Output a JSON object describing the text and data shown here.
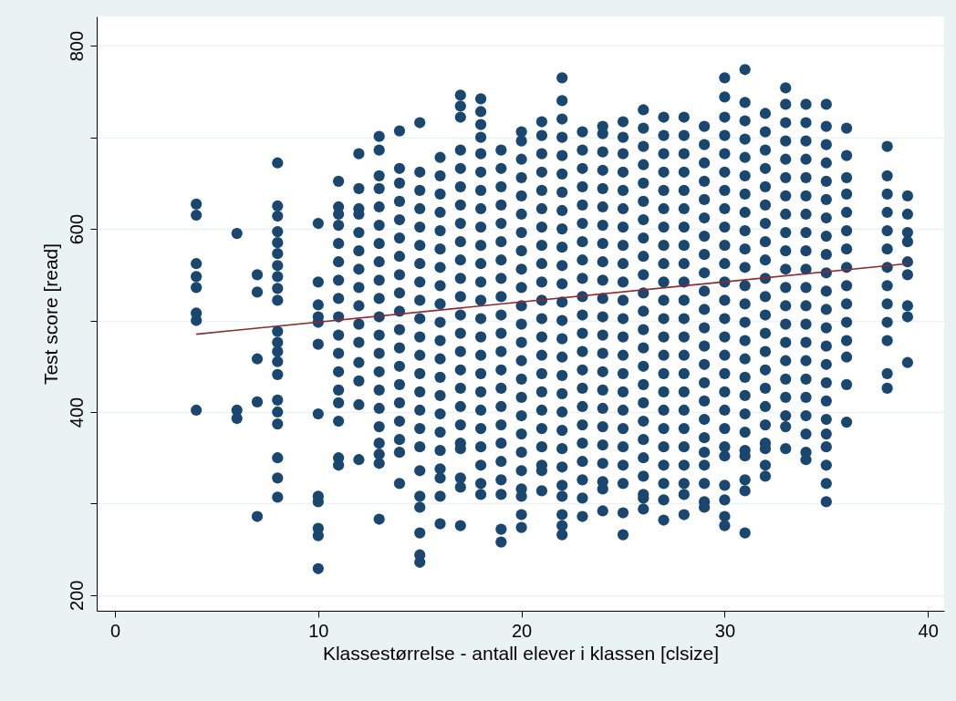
{
  "chart_data": {
    "type": "scatter",
    "xlabel": "Klassestørrelse - antall elever i klassen [clsize]",
    "ylabel": "Test score [read]",
    "xlim": [
      -0.9,
      40.8
    ],
    "ylim": [
      183,
      832
    ],
    "xticks": [
      0,
      10,
      20,
      30,
      40
    ],
    "yticks": [
      200,
      {
        "value": 300,
        "label": null
      },
      400,
      {
        "value": 500,
        "label": null
      },
      600,
      {
        "value": 700,
        "label": null
      },
      800
    ],
    "grid": "y",
    "marker": "circle",
    "series": [
      {
        "color": "#1a476f",
        "x": [
          4,
          4,
          4,
          4,
          4,
          4,
          4,
          4
        ],
        "values": [
          627,
          615,
          562,
          548,
          536,
          508,
          500,
          402
        ]
      },
      {
        "color": "#1a476f",
        "x": [
          6,
          6,
          6
        ],
        "values": [
          595,
          402,
          393
        ]
      },
      {
        "color": "#1a476f",
        "x": [
          7,
          7,
          7,
          7,
          7
        ],
        "values": [
          550,
          531,
          458,
          411,
          286
        ]
      },
      {
        "color": "#1a476f",
        "x": [
          8,
          8,
          8,
          8,
          8,
          8,
          8,
          8,
          8,
          8,
          8,
          8,
          8,
          8,
          8,
          8,
          8,
          8,
          8,
          8,
          8
        ],
        "values": [
          672,
          625,
          614,
          597,
          585,
          573,
          560,
          548,
          535,
          522,
          488,
          476,
          466,
          455,
          441,
          413,
          400,
          387,
          350,
          328,
          307
        ]
      },
      {
        "color": "#1a476f",
        "x": [
          10,
          10,
          10,
          10,
          10,
          10,
          10,
          10,
          10,
          10,
          10,
          10
        ],
        "values": [
          606,
          542,
          517,
          504,
          498,
          474,
          398,
          308,
          302,
          273,
          265,
          229
        ]
      },
      {
        "color": "#1a476f",
        "x": [
          11,
          11,
          11,
          11,
          11,
          11,
          11,
          11,
          11,
          11,
          11,
          11,
          11,
          11,
          11,
          11,
          11
        ],
        "values": [
          652,
          624,
          616,
          604,
          584,
          564,
          544,
          524,
          504,
          484,
          464,
          444,
          424,
          410,
          390,
          350,
          342
        ]
      },
      {
        "color": "#1a476f",
        "x": [
          12,
          12,
          12,
          12,
          12,
          12,
          12,
          12,
          12,
          12,
          12,
          12,
          12,
          12,
          12
        ],
        "values": [
          682,
          644,
          622,
          616,
          596,
          576,
          556,
          536,
          516,
          496,
          476,
          454,
          434,
          408,
          348
        ]
      },
      {
        "color": "#1a476f",
        "x": [
          13,
          13,
          13,
          13,
          13,
          13,
          13,
          13,
          13,
          13,
          13,
          13,
          13,
          13,
          13,
          13,
          13,
          13,
          13,
          13,
          13
        ],
        "values": [
          701,
          686,
          658,
          644,
          624,
          604,
          584,
          564,
          544,
          524,
          504,
          484,
          464,
          444,
          424,
          404,
          384,
          366,
          354,
          344,
          283
        ]
      },
      {
        "color": "#1a476f",
        "x": [
          14,
          14,
          14,
          14,
          14,
          14,
          14,
          14,
          14,
          14,
          14,
          14,
          14,
          14,
          14,
          14,
          14,
          14,
          14
        ],
        "values": [
          707,
          666,
          650,
          630,
          610,
          590,
          570,
          550,
          530,
          510,
          490,
          470,
          450,
          430,
          410,
          390,
          370,
          356,
          322
        ]
      },
      {
        "color": "#1a476f",
        "x": [
          15,
          15,
          15,
          15,
          15,
          15,
          15,
          15,
          15,
          15,
          15,
          15,
          15,
          15,
          15,
          15,
          15,
          15,
          15,
          15,
          15,
          15,
          15
        ],
        "values": [
          716,
          662,
          642,
          622,
          602,
          582,
          562,
          542,
          522,
          502,
          482,
          462,
          442,
          422,
          402,
          382,
          362,
          336,
          308,
          296,
          268,
          244,
          236
        ]
      },
      {
        "color": "#1a476f",
        "x": [
          16,
          16,
          16,
          16,
          16,
          16,
          16,
          16,
          16,
          16,
          16,
          16,
          16,
          16,
          16,
          16,
          16,
          16,
          16,
          16,
          16
        ],
        "values": [
          678,
          658,
          638,
          618,
          598,
          578,
          558,
          538,
          518,
          498,
          478,
          458,
          438,
          418,
          398,
          378,
          358,
          338,
          328,
          308,
          278
        ]
      },
      {
        "color": "#1a476f",
        "x": [
          17,
          17,
          17,
          17,
          17,
          17,
          17,
          17,
          17,
          17,
          17,
          17,
          17,
          17,
          17,
          17,
          17,
          17,
          17,
          17,
          17,
          17,
          17,
          17
        ],
        "values": [
          746,
          734,
          722,
          686,
          666,
          646,
          626,
          606,
          586,
          566,
          546,
          526,
          506,
          486,
          466,
          446,
          426,
          406,
          386,
          366,
          360,
          328,
          318,
          276
        ]
      },
      {
        "color": "#1a476f",
        "x": [
          18,
          18,
          18,
          18,
          18,
          18,
          18,
          18,
          18,
          18,
          18,
          18,
          18,
          18,
          18,
          18,
          18,
          18,
          18,
          18,
          18,
          18,
          18,
          18
        ],
        "values": [
          742,
          728,
          714,
          700,
          682,
          662,
          642,
          622,
          602,
          582,
          562,
          542,
          522,
          502,
          482,
          462,
          442,
          422,
          402,
          382,
          362,
          342,
          322,
          310
        ]
      },
      {
        "color": "#1a476f",
        "x": [
          19,
          19,
          19,
          19,
          19,
          19,
          19,
          19,
          19,
          19,
          19,
          19,
          19,
          19,
          19,
          19,
          19,
          19,
          19,
          19,
          19,
          19
        ],
        "values": [
          686,
          666,
          646,
          626,
          606,
          586,
          566,
          546,
          526,
          506,
          486,
          466,
          446,
          426,
          406,
          386,
          366,
          346,
          326,
          310,
          272,
          258
        ]
      },
      {
        "color": "#1a476f",
        "x": [
          20,
          20,
          20,
          20,
          20,
          20,
          20,
          20,
          20,
          20,
          20,
          20,
          20,
          20,
          20,
          20,
          20,
          20,
          20,
          20,
          20,
          20,
          20,
          20
        ],
        "values": [
          706,
          696,
          676,
          656,
          636,
          616,
          596,
          576,
          556,
          536,
          516,
          496,
          476,
          456,
          436,
          416,
          396,
          376,
          356,
          336,
          316,
          308,
          288,
          274
        ]
      },
      {
        "color": "#1a476f",
        "x": [
          21,
          21,
          21,
          21,
          21,
          21,
          21,
          21,
          21,
          21,
          21,
          21,
          21,
          21,
          21,
          21,
          21,
          21,
          21,
          21,
          21,
          21
        ],
        "values": [
          717,
          702,
          682,
          662,
          642,
          622,
          602,
          582,
          562,
          542,
          522,
          502,
          482,
          462,
          442,
          422,
          402,
          382,
          362,
          342,
          336,
          314
        ]
      },
      {
        "color": "#1a476f",
        "x": [
          22,
          22,
          22,
          22,
          22,
          22,
          22,
          22,
          22,
          22,
          22,
          22,
          22,
          22,
          22,
          22,
          22,
          22,
          22,
          22,
          22,
          22,
          22,
          22,
          22,
          22,
          22
        ],
        "values": [
          765,
          740,
          720,
          700,
          680,
          660,
          640,
          620,
          600,
          580,
          560,
          540,
          520,
          500,
          480,
          460,
          440,
          420,
          400,
          380,
          360,
          340,
          320,
          308,
          288,
          276,
          266
        ]
      },
      {
        "color": "#1a476f",
        "x": [
          23,
          23,
          23,
          23,
          23,
          23,
          23,
          23,
          23,
          23,
          23,
          23,
          23,
          23,
          23,
          23,
          23,
          23,
          23,
          23,
          23,
          23
        ],
        "values": [
          706,
          686,
          666,
          646,
          626,
          606,
          586,
          566,
          546,
          526,
          506,
          486,
          466,
          446,
          426,
          406,
          386,
          366,
          346,
          326,
          306,
          286
        ]
      },
      {
        "color": "#1a476f",
        "x": [
          24,
          24,
          24,
          24,
          24,
          24,
          24,
          24,
          24,
          24,
          24,
          24,
          24,
          24,
          24,
          24,
          24,
          24,
          24,
          24,
          24,
          24,
          24
        ],
        "values": [
          712,
          704,
          684,
          664,
          644,
          624,
          604,
          584,
          564,
          544,
          524,
          504,
          484,
          464,
          444,
          424,
          404,
          384,
          364,
          344,
          324,
          316,
          292
        ]
      },
      {
        "color": "#1a476f",
        "x": [
          25,
          25,
          25,
          25,
          25,
          25,
          25,
          25,
          25,
          25,
          25,
          25,
          25,
          25,
          25,
          25,
          25,
          25,
          25,
          25,
          25,
          25,
          25
        ],
        "values": [
          717,
          700,
          682,
          662,
          642,
          622,
          602,
          582,
          562,
          542,
          522,
          502,
          482,
          462,
          442,
          422,
          402,
          382,
          362,
          342,
          322,
          290,
          266
        ]
      },
      {
        "color": "#1a476f",
        "x": [
          26,
          26,
          26,
          26,
          26,
          26,
          26,
          26,
          26,
          26,
          26,
          26,
          26,
          26,
          26,
          26,
          26,
          26,
          26,
          26,
          26,
          26,
          26,
          26
        ],
        "values": [
          730,
          710,
          690,
          670,
          650,
          630,
          610,
          590,
          570,
          550,
          530,
          510,
          490,
          470,
          450,
          430,
          410,
          390,
          370,
          350,
          330,
          310,
          306,
          294
        ]
      },
      {
        "color": "#1a476f",
        "x": [
          27,
          27,
          27,
          27,
          27,
          27,
          27,
          27,
          27,
          27,
          27,
          27,
          27,
          27,
          27,
          27,
          27,
          27,
          27,
          27,
          27,
          27,
          27
        ],
        "values": [
          722,
          702,
          682,
          662,
          642,
          622,
          602,
          582,
          562,
          542,
          522,
          502,
          482,
          462,
          442,
          422,
          402,
          382,
          362,
          342,
          322,
          304,
          282
        ]
      },
      {
        "color": "#1a476f",
        "x": [
          28,
          28,
          28,
          28,
          28,
          28,
          28,
          28,
          28,
          28,
          28,
          28,
          28,
          28,
          28,
          28,
          28,
          28,
          28,
          28,
          28,
          28,
          28
        ],
        "values": [
          722,
          702,
          682,
          662,
          642,
          622,
          602,
          582,
          562,
          542,
          522,
          502,
          482,
          462,
          442,
          422,
          402,
          382,
          362,
          342,
          322,
          310,
          288
        ]
      },
      {
        "color": "#1a476f",
        "x": [
          29,
          29,
          29,
          29,
          29,
          29,
          29,
          29,
          29,
          29,
          29,
          29,
          29,
          29,
          29,
          29,
          29,
          29,
          29,
          29,
          29,
          29,
          29
        ],
        "values": [
          712,
          692,
          672,
          652,
          632,
          612,
          592,
          572,
          552,
          532,
          512,
          492,
          472,
          452,
          432,
          412,
          392,
          372,
          356,
          342,
          322,
          302,
          296
        ]
      },
      {
        "color": "#1a476f",
        "x": [
          30,
          30,
          30,
          30,
          30,
          30,
          30,
          30,
          30,
          30,
          30,
          30,
          30,
          30,
          30,
          30,
          30,
          30,
          30,
          30,
          30,
          30,
          30,
          30,
          30,
          30
        ],
        "values": [
          765,
          744,
          722,
          702,
          682,
          662,
          642,
          622,
          602,
          582,
          562,
          542,
          522,
          502,
          482,
          462,
          442,
          422,
          402,
          382,
          362,
          352,
          320,
          304,
          286,
          276
        ]
      },
      {
        "color": "#1a476f",
        "x": [
          31,
          31,
          31,
          31,
          31,
          31,
          31,
          31,
          31,
          31,
          31,
          31,
          31,
          31,
          31,
          31,
          31,
          31,
          31,
          31,
          31,
          31,
          31,
          31,
          31
        ],
        "values": [
          774,
          738,
          718,
          698,
          678,
          658,
          638,
          618,
          598,
          578,
          558,
          538,
          518,
          498,
          478,
          458,
          438,
          418,
          398,
          378,
          358,
          352,
          326,
          314,
          268
        ]
      },
      {
        "color": "#1a476f",
        "x": [
          32,
          32,
          32,
          32,
          32,
          32,
          32,
          32,
          32,
          32,
          32,
          32,
          32,
          32,
          32,
          32,
          32,
          32,
          32,
          32,
          32,
          32
        ],
        "values": [
          726,
          706,
          686,
          666,
          646,
          626,
          606,
          586,
          566,
          546,
          526,
          506,
          486,
          466,
          446,
          426,
          406,
          386,
          366,
          360,
          342,
          330
        ]
      },
      {
        "color": "#1a476f",
        "x": [
          33,
          33,
          33,
          33,
          33,
          33,
          33,
          33,
          33,
          33,
          33,
          33,
          33,
          33,
          33,
          33,
          33,
          33,
          33,
          33,
          33
        ],
        "values": [
          754,
          736,
          716,
          696,
          676,
          656,
          636,
          616,
          596,
          576,
          556,
          536,
          516,
          496,
          476,
          456,
          436,
          416,
          396,
          384,
          360
        ]
      },
      {
        "color": "#1a476f",
        "x": [
          34,
          34,
          34,
          34,
          34,
          34,
          34,
          34,
          34,
          34,
          34,
          34,
          34,
          34,
          34,
          34,
          34,
          34,
          34,
          34,
          34
        ],
        "values": [
          736,
          716,
          696,
          676,
          656,
          636,
          616,
          596,
          576,
          556,
          536,
          516,
          496,
          476,
          456,
          436,
          416,
          396,
          376,
          356,
          348
        ]
      },
      {
        "color": "#1a476f",
        "x": [
          35,
          35,
          35,
          35,
          35,
          35,
          35,
          35,
          35,
          35,
          35,
          35,
          35,
          35,
          35,
          35,
          35,
          35,
          35,
          35,
          35,
          35,
          35
        ],
        "values": [
          736,
          712,
          692,
          672,
          652,
          632,
          612,
          592,
          572,
          552,
          532,
          512,
          492,
          472,
          452,
          432,
          412,
          392,
          376,
          362,
          342,
          322,
          302
        ]
      },
      {
        "color": "#1a476f",
        "x": [
          36,
          36,
          36,
          36,
          36,
          36,
          36,
          36,
          36,
          36,
          36,
          36,
          36,
          36,
          36
        ],
        "values": [
          710,
          680,
          656,
          638,
          618,
          598,
          578,
          558,
          538,
          518,
          498,
          478,
          460,
          430,
          389
        ]
      },
      {
        "color": "#1a476f",
        "x": [
          38,
          38,
          38,
          38,
          38,
          38,
          38,
          38,
          38,
          38,
          38,
          38,
          38
        ],
        "values": [
          690,
          658,
          638,
          618,
          598,
          578,
          558,
          538,
          518,
          498,
          478,
          442,
          426
        ]
      },
      {
        "color": "#1a476f",
        "x": [
          39,
          39,
          39,
          39,
          39,
          39,
          39,
          39,
          39
        ],
        "values": [
          636,
          616,
          596,
          586,
          564,
          550,
          516,
          504,
          454
        ]
      },
      {
        "type": "line",
        "marker": "none",
        "color": "#8c2b2f",
        "x": [
          4,
          39
        ],
        "values": [
          485,
          562
        ]
      }
    ]
  }
}
